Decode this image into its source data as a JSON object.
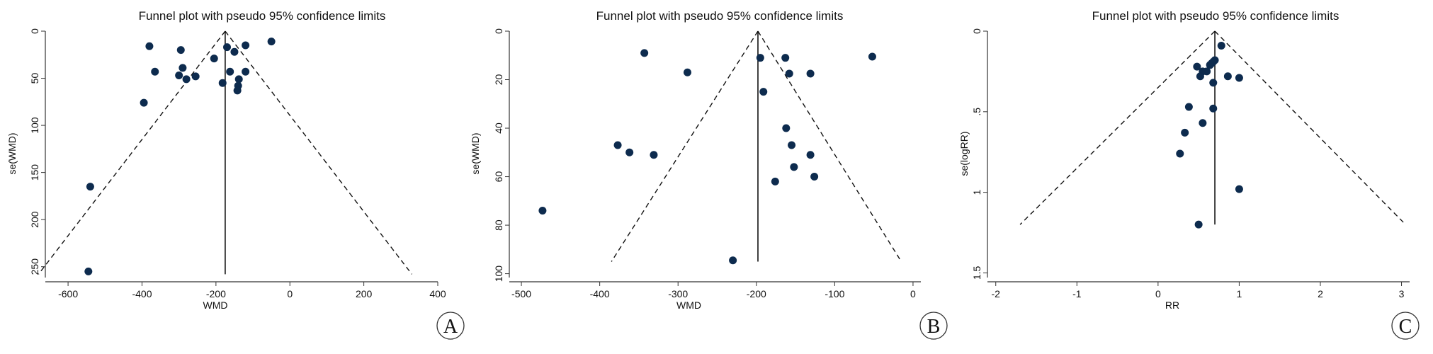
{
  "chart_data": [
    {
      "type": "scatter",
      "panel_label": "A",
      "title": "Funnel plot with pseudo 95% confidence limits",
      "xlabel": "WMD",
      "ylabel": "se(WMD)",
      "xlim": [
        -650,
        400
      ],
      "ylim": [
        0,
        260
      ],
      "y_inverted": true,
      "xticks": [
        -600,
        -400,
        -200,
        0,
        200,
        400
      ],
      "xtick_labels": [
        "-600",
        "-400",
        "-200",
        "0",
        "200",
        "400"
      ],
      "yticks": [
        0,
        50,
        100,
        150,
        200,
        250
      ],
      "ytick_labels": [
        "0",
        "50",
        "100",
        "150",
        "200",
        "250"
      ],
      "pooled_estimate": -175,
      "pooled_line_y": [
        0,
        258
      ],
      "ci_limits": {
        "apex": [
          -175,
          0
        ],
        "left_end": [
          -680,
          258
        ],
        "right_end": [
          330,
          258
        ]
      },
      "points": [
        {
          "x": -50,
          "y": 11
        },
        {
          "x": -120,
          "y": 15
        },
        {
          "x": -380,
          "y": 16
        },
        {
          "x": -295,
          "y": 20
        },
        {
          "x": -150,
          "y": 22
        },
        {
          "x": -170,
          "y": 17
        },
        {
          "x": -205,
          "y": 29
        },
        {
          "x": -290,
          "y": 39
        },
        {
          "x": -365,
          "y": 43
        },
        {
          "x": -162,
          "y": 43
        },
        {
          "x": -120,
          "y": 43
        },
        {
          "x": -300,
          "y": 47
        },
        {
          "x": -255,
          "y": 48
        },
        {
          "x": -280,
          "y": 51
        },
        {
          "x": -138,
          "y": 51
        },
        {
          "x": -182,
          "y": 55
        },
        {
          "x": -140,
          "y": 58
        },
        {
          "x": -142,
          "y": 63
        },
        {
          "x": -395,
          "y": 76
        },
        {
          "x": -540,
          "y": 165
        },
        {
          "x": -545,
          "y": 255
        }
      ]
    },
    {
      "type": "scatter",
      "panel_label": "B",
      "title": "Funnel plot with pseudo 95% confidence limits",
      "xlabel": "WMD",
      "ylabel": "se(WMD)",
      "xlim": [
        -510,
        10
      ],
      "ylim": [
        0,
        101
      ],
      "y_inverted": true,
      "xticks": [
        -500,
        -400,
        -300,
        -200,
        -100,
        0
      ],
      "xtick_labels": [
        "-500",
        "-400",
        "-300",
        "-200",
        "-100",
        "0"
      ],
      "yticks": [
        0,
        20,
        40,
        60,
        80,
        100
      ],
      "ytick_labels": [
        "0",
        "20",
        "40",
        "60",
        "80",
        "100"
      ],
      "pooled_estimate": -198,
      "pooled_line_y": [
        0,
        95
      ],
      "ci_limits": {
        "apex": [
          -198,
          0
        ],
        "left_end": [
          -385,
          95
        ],
        "right_end": [
          -15,
          95
        ]
      },
      "points": [
        {
          "x": -343,
          "y": 9
        },
        {
          "x": -52,
          "y": 10.5
        },
        {
          "x": -195,
          "y": 11
        },
        {
          "x": -163,
          "y": 11
        },
        {
          "x": -288,
          "y": 17
        },
        {
          "x": -158,
          "y": 17.5
        },
        {
          "x": -131,
          "y": 17.5
        },
        {
          "x": -191,
          "y": 25
        },
        {
          "x": -162,
          "y": 40
        },
        {
          "x": -377,
          "y": 47
        },
        {
          "x": -155,
          "y": 47
        },
        {
          "x": -362,
          "y": 50
        },
        {
          "x": -331,
          "y": 51
        },
        {
          "x": -131,
          "y": 51
        },
        {
          "x": -152,
          "y": 56
        },
        {
          "x": -126,
          "y": 60
        },
        {
          "x": -176,
          "y": 62
        },
        {
          "x": -473,
          "y": 74
        },
        {
          "x": -230,
          "y": 94.5
        }
      ]
    },
    {
      "type": "scatter",
      "panel_label": "C",
      "title": "Funnel plot with pseudo 95% confidence limits",
      "xlabel": "RR",
      "ylabel": "se(logRR)",
      "xlim": [
        -2.05,
        3.1
      ],
      "ylim": [
        0,
        1.52
      ],
      "y_inverted": true,
      "xticks": [
        -2,
        -1,
        0,
        1,
        2,
        3
      ],
      "xtick_labels": [
        "-2",
        "-1",
        "0",
        "1",
        "2",
        "3"
      ],
      "yticks": [
        0,
        0.5,
        1,
        1.5
      ],
      "ytick_labels": [
        "0",
        ".5",
        "1",
        "1.5"
      ],
      "pooled_estimate": 0.7,
      "pooled_line_y": [
        0,
        1.2
      ],
      "ci_limits": {
        "apex": [
          0.7,
          0
        ],
        "left_end": [
          -1.7,
          1.2
        ],
        "right_end": [
          3.05,
          1.2
        ]
      },
      "points": [
        {
          "x": 0.78,
          "y": 0.09
        },
        {
          "x": 0.7,
          "y": 0.18
        },
        {
          "x": 0.68,
          "y": 0.19
        },
        {
          "x": 0.66,
          "y": 0.2
        },
        {
          "x": 0.64,
          "y": 0.21
        },
        {
          "x": 0.48,
          "y": 0.22
        },
        {
          "x": 0.55,
          "y": 0.25
        },
        {
          "x": 0.6,
          "y": 0.25
        },
        {
          "x": 0.52,
          "y": 0.28
        },
        {
          "x": 0.86,
          "y": 0.28
        },
        {
          "x": 1.0,
          "y": 0.29
        },
        {
          "x": 0.68,
          "y": 0.32
        },
        {
          "x": 0.38,
          "y": 0.47
        },
        {
          "x": 0.68,
          "y": 0.48
        },
        {
          "x": 0.55,
          "y": 0.57
        },
        {
          "x": 0.33,
          "y": 0.63
        },
        {
          "x": 0.27,
          "y": 0.76
        },
        {
          "x": 1.0,
          "y": 0.98
        },
        {
          "x": 0.5,
          "y": 1.2
        }
      ]
    }
  ],
  "colors": {
    "point": "#0d2b4e",
    "axis": "#333333",
    "text": "#111111",
    "ci_line": "#111111"
  }
}
